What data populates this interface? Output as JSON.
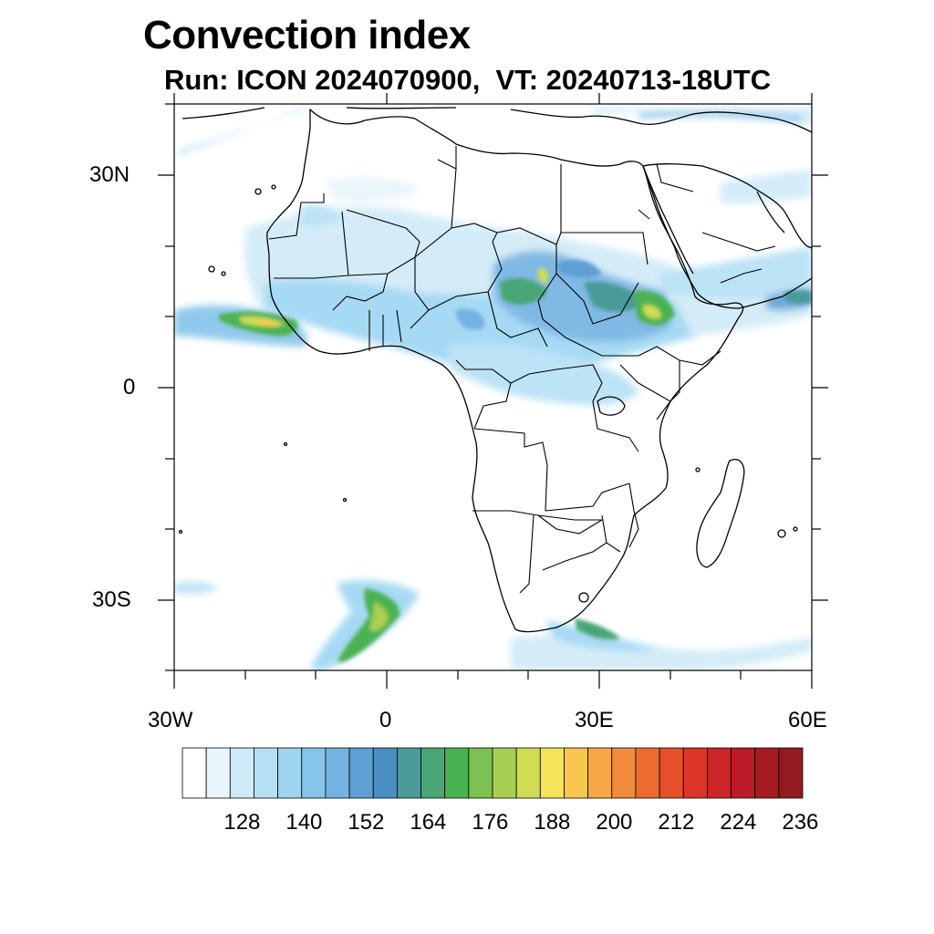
{
  "title": "Convection index",
  "subtitle": "Run: ICON 2024070900,  VT: 20240713-18UTC",
  "map": {
    "lon_range": [
      -30,
      60
    ],
    "lat_range": [
      -40,
      40
    ],
    "lat_labels": [
      "30N",
      "0",
      "30S"
    ],
    "lon_labels": [
      "30W",
      "0",
      "30E",
      "60E"
    ]
  },
  "colorbar": {
    "colors": [
      "#ffffff",
      "#e8f5fc",
      "#cfeaf8",
      "#b6e0f6",
      "#9dd5f3",
      "#86c4ea",
      "#73b2e2",
      "#5e9fd6",
      "#4a8fc3",
      "#4a9b9a",
      "#4aa677",
      "#4bb253",
      "#7cc152",
      "#a9cf52",
      "#cfdc54",
      "#f3e45a",
      "#f9c650",
      "#f8a847",
      "#f48a3c",
      "#ef6b31",
      "#e64f2a",
      "#dc3628",
      "#cc2428",
      "#bb1b26",
      "#a81a22",
      "#931a1e"
    ],
    "tick_labels": [
      "128",
      "140",
      "152",
      "164",
      "176",
      "188",
      "200",
      "212",
      "224",
      "236"
    ]
  }
}
